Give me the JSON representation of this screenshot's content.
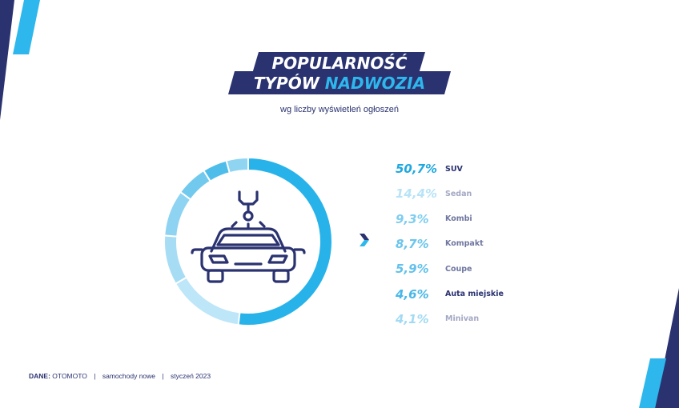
{
  "header": {
    "title_line1": "POPULARNOŚĆ",
    "title_line2_part1": "TYPÓW",
    "title_line2_part2": "NADWOZIA",
    "subtitle": "wg liczby wyświetleń ogłoszeń"
  },
  "colors": {
    "navy": "#2a3270",
    "accent": "#2eb7ec",
    "light_blue": "#a9def4"
  },
  "icons": {
    "center": "car-robot-arm-icon",
    "arrow": "chevron-right-icon"
  },
  "chart_data": {
    "type": "pie",
    "donut": true,
    "categories": [
      "SUV",
      "Sedan",
      "Kombi",
      "Kompakt",
      "Coupe",
      "Auta miejskie",
      "Minivan"
    ],
    "values": [
      50.7,
      14.4,
      9.3,
      8.7,
      5.9,
      4.6,
      4.1
    ],
    "labels": [
      "50,7%",
      "14,4%",
      "9,3%",
      "8,7%",
      "5,9%",
      "4,6%",
      "4,1%"
    ],
    "slice_colors": [
      "#27b3ea",
      "#bde6f8",
      "#a6ddf4",
      "#8ed3f1",
      "#72c9ee",
      "#4fbdea",
      "#8fd5f2"
    ],
    "pct_colors": [
      "#1fa8e0",
      "#b8e3f6",
      "#7fcdef",
      "#6bc5ec",
      "#63c1eb",
      "#49b7e8",
      "#a2daf3"
    ],
    "cat_colors": [
      "#2a3270",
      "#a3a8c4",
      "#6f76a0",
      "#6f76a0",
      "#6f76a0",
      "#2a3270",
      "#a3a8c4"
    ],
    "legend_position": "right"
  },
  "footer": {
    "source_label": "DANE:",
    "source": "OTOMOTO",
    "scope": "samochody nowe",
    "date": "styczeń 2023",
    "separator": "|"
  }
}
